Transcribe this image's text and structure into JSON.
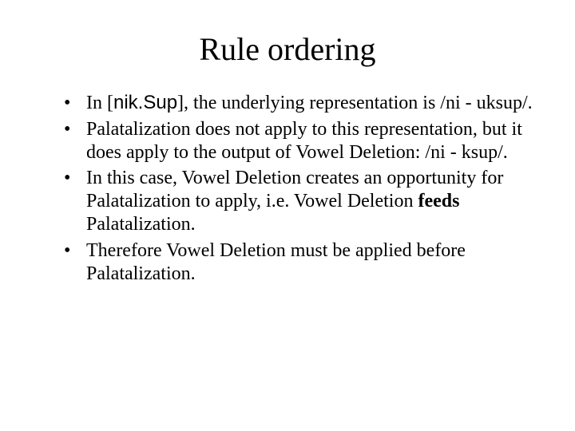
{
  "title": "Rule ordering",
  "bullets": [
    {
      "pre": "In [",
      "sans": "nik.Sup",
      "post": "], the underlying representation is /ni - uksup/."
    },
    {
      "text": "Palatalization does not apply to this representation, but it does apply to the output of Vowel Deletion: /ni - ksup/."
    },
    {
      "pre": "In this case, Vowel Deletion creates an opportunity for Palatalization to apply, i.e. Vowel Deletion ",
      "bold": "feeds",
      "post": " Palatalization."
    },
    {
      "text": "Therefore Vowel Deletion must be applied before Palatalization."
    }
  ],
  "styling": {
    "background_color": "#ffffff",
    "text_color": "#000000",
    "title_fontsize": 40,
    "body_fontsize": 24,
    "serif_font": "Times New Roman",
    "sans_font": "Arial",
    "slide_width": 720,
    "slide_height": 540
  }
}
